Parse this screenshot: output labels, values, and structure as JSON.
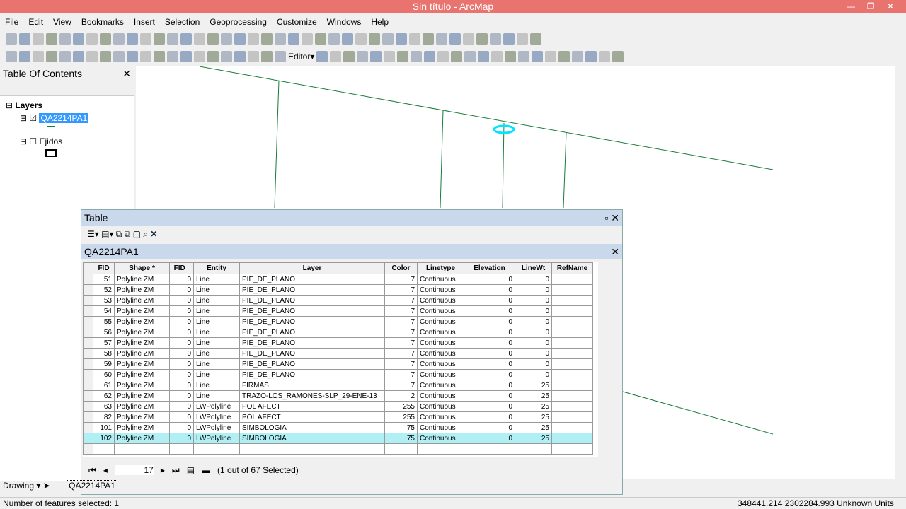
{
  "app": {
    "title": "Sin título - ArcMap"
  },
  "menu": [
    "File",
    "Edit",
    "View",
    "Bookmarks",
    "Insert",
    "Selection",
    "Geoprocessing",
    "Customize",
    "Windows",
    "Help"
  ],
  "toolbar": {
    "editor_label": "Editor▾"
  },
  "toc": {
    "title": "Table Of Contents",
    "root": "Layers",
    "layers": [
      {
        "name": "QA2214PA1",
        "checked": true
      },
      {
        "name": "Ejidos",
        "checked": false
      }
    ]
  },
  "table": {
    "window_title": "Table",
    "layer_tab": "QA2214PA1",
    "columns": [
      "FID",
      "Shape *",
      "FID_",
      "Entity",
      "Layer",
      "Color",
      "Linetype",
      "Elevation",
      "LineWt",
      "RefName"
    ],
    "rows": [
      [
        "51",
        "Polyline ZM",
        "0",
        "Line",
        "PIE_DE_PLANO",
        "7",
        "Continuous",
        "0",
        "0",
        ""
      ],
      [
        "52",
        "Polyline ZM",
        "0",
        "Line",
        "PIE_DE_PLANO",
        "7",
        "Continuous",
        "0",
        "0",
        ""
      ],
      [
        "53",
        "Polyline ZM",
        "0",
        "Line",
        "PIE_DE_PLANO",
        "7",
        "Continuous",
        "0",
        "0",
        ""
      ],
      [
        "54",
        "Polyline ZM",
        "0",
        "Line",
        "PIE_DE_PLANO",
        "7",
        "Continuous",
        "0",
        "0",
        ""
      ],
      [
        "55",
        "Polyline ZM",
        "0",
        "Line",
        "PIE_DE_PLANO",
        "7",
        "Continuous",
        "0",
        "0",
        ""
      ],
      [
        "56",
        "Polyline ZM",
        "0",
        "Line",
        "PIE_DE_PLANO",
        "7",
        "Continuous",
        "0",
        "0",
        ""
      ],
      [
        "57",
        "Polyline ZM",
        "0",
        "Line",
        "PIE_DE_PLANO",
        "7",
        "Continuous",
        "0",
        "0",
        ""
      ],
      [
        "58",
        "Polyline ZM",
        "0",
        "Line",
        "PIE_DE_PLANO",
        "7",
        "Continuous",
        "0",
        "0",
        ""
      ],
      [
        "59",
        "Polyline ZM",
        "0",
        "Line",
        "PIE_DE_PLANO",
        "7",
        "Continuous",
        "0",
        "0",
        ""
      ],
      [
        "60",
        "Polyline ZM",
        "0",
        "Line",
        "PIE_DE_PLANO",
        "7",
        "Continuous",
        "0",
        "0",
        ""
      ],
      [
        "61",
        "Polyline ZM",
        "0",
        "Line",
        "FIRMAS",
        "7",
        "Continuous",
        "0",
        "25",
        ""
      ],
      [
        "62",
        "Polyline ZM",
        "0",
        "Line",
        "TRAZO-LOS_RAMONES-SLP_29-ENE-13",
        "2",
        "Continuous",
        "0",
        "25",
        ""
      ],
      [
        "63",
        "Polyline ZM",
        "0",
        "LWPolyline",
        "POL AFECT",
        "255",
        "Continuous",
        "0",
        "25",
        ""
      ],
      [
        "82",
        "Polyline ZM",
        "0",
        "LWPolyline",
        "POL AFECT",
        "255",
        "Continuous",
        "0",
        "25",
        ""
      ],
      [
        "101",
        "Polyline ZM",
        "0",
        "LWPolyline",
        "SIMBOLOGIA",
        "75",
        "Continuous",
        "0",
        "25",
        ""
      ],
      [
        "102",
        "Polyline ZM",
        "0",
        "LWPolyline",
        "SIMBOLOGIA",
        "75",
        "Continuous",
        "0",
        "25",
        ""
      ]
    ],
    "selected_fid": "102",
    "current_record": "17",
    "selection_status": "(1 out of 67 Selected)"
  },
  "tabs": {
    "drawing": "Drawing ▾",
    "layer": "QA2214PA1"
  },
  "status": {
    "left": "Number of features selected: 1",
    "coords": "348441.214  2302284.993 Unknown Units"
  },
  "colors": {
    "titlebar": "#e8736f",
    "selection": "#b0f0f5",
    "map_line": "#1a7a3a"
  }
}
